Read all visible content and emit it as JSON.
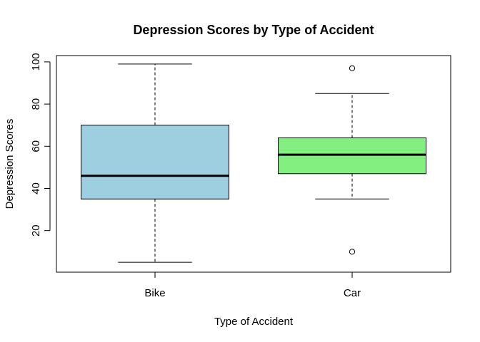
{
  "chart_data": {
    "type": "boxplot",
    "title": "Depression Scores by Type of Accident",
    "xlabel": "Type of Accident",
    "ylabel": "Depression Scores",
    "ylim": [
      0.3,
      103
    ],
    "yticks": [
      20,
      40,
      60,
      80,
      100
    ],
    "categories": [
      "Bike",
      "Car"
    ],
    "boxes": [
      {
        "category": "Bike",
        "color": "#9ECFE1",
        "whisker_low": 5,
        "q1": 35,
        "median": 46,
        "q3": 70,
        "whisker_high": 99,
        "outliers": []
      },
      {
        "category": "Car",
        "color": "#82EF80",
        "whisker_low": 35,
        "q1": 47,
        "median": 56,
        "q3": 64,
        "whisker_high": 85,
        "outliers": [
          97,
          10
        ]
      }
    ],
    "grid": false
  }
}
